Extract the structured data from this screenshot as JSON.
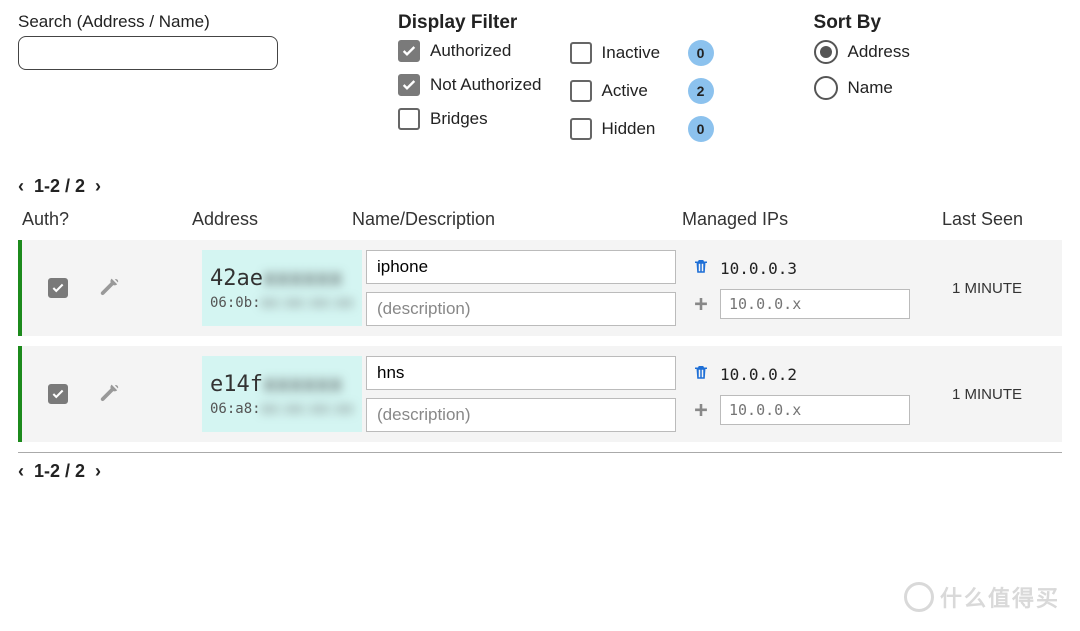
{
  "search": {
    "label": "Search (Address / Name)",
    "value": ""
  },
  "filter": {
    "title": "Display Filter",
    "col1": [
      {
        "label": "Authorized",
        "checked": true
      },
      {
        "label": "Not Authorized",
        "checked": true
      },
      {
        "label": "Bridges",
        "checked": false
      }
    ],
    "col2": [
      {
        "label": "Inactive",
        "checked": false,
        "count": 0
      },
      {
        "label": "Active",
        "checked": false,
        "count": 2
      },
      {
        "label": "Hidden",
        "checked": false,
        "count": 0
      }
    ]
  },
  "sort": {
    "title": "Sort By",
    "options": [
      {
        "label": "Address",
        "selected": true
      },
      {
        "label": "Name",
        "selected": false
      }
    ]
  },
  "pager": {
    "text": "1-2 / 2"
  },
  "columns": {
    "auth": "Auth?",
    "address": "Address",
    "name": "Name/Description",
    "ips": "Managed IPs",
    "last": "Last Seen"
  },
  "placeholders": {
    "description": "(description)",
    "ip": "10.0.0.x"
  },
  "rows": [
    {
      "auth": true,
      "addr_prefix": "42ae",
      "addr_blur": "xxxxxx",
      "mac_prefix": "06:0b:",
      "mac_blur": "xx:xx:xx:xx",
      "name": "iphone",
      "description": "",
      "ip": "10.0.0.3",
      "last": "1 MINUTE"
    },
    {
      "auth": true,
      "addr_prefix": "e14f",
      "addr_blur": "xxxxxx",
      "mac_prefix": "06:a8:",
      "mac_blur": "xx:xx:xx:xx",
      "name": "hns",
      "description": "",
      "ip": "10.0.0.2",
      "last": "1 MINUTE"
    }
  ],
  "watermark": "什么值得买",
  "colors": {
    "badge_bg": "#8cc2ee",
    "row_bg": "#f4f4f4",
    "row_accent": "#1c8a1c",
    "addr_bg": "#d4f5f2",
    "trash": "#1e6fd6"
  }
}
